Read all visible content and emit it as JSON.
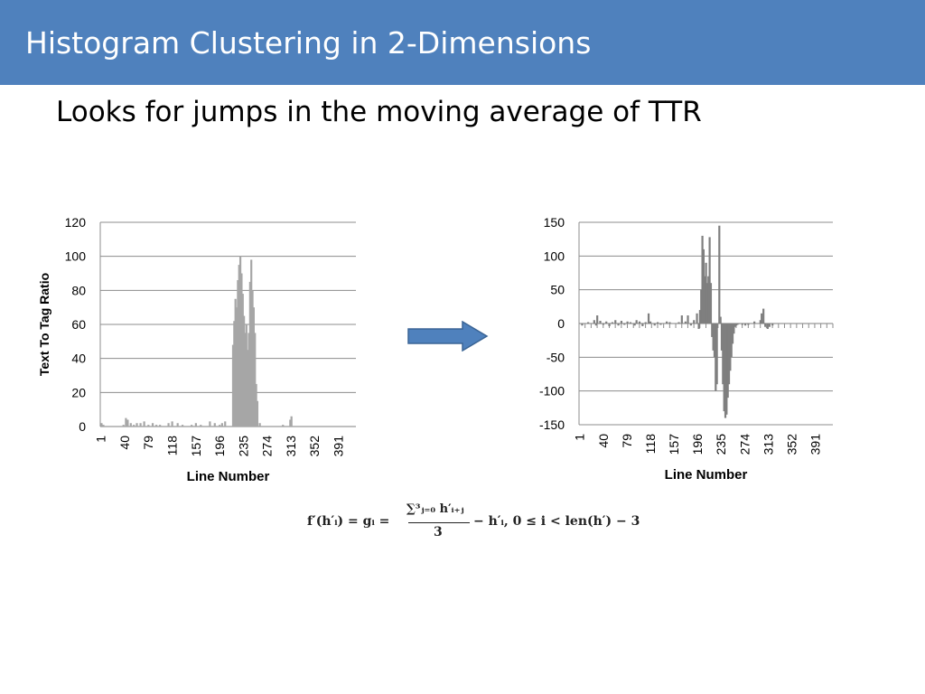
{
  "slide": {
    "title": "Histogram Clustering in 2-Dimensions",
    "subtitle": "Looks for jumps in the moving average of TTR"
  },
  "colors": {
    "title_bar": "#4f81bd",
    "arrow": "#4f81bd",
    "bars": "#a6a6a6",
    "bars_dark": "#7f7f7f",
    "gridline": "#8c8c8c"
  },
  "formula": {
    "lhs": "f′(h′ᵢ) = gᵢ =",
    "numerator": "∑³ⱼ₌₀ h′ᵢ₊ⱼ",
    "denominator": "3",
    "rhs": "− h′ᵢ, 0 ≤ i < len(h′) − 3"
  },
  "chart_data": [
    {
      "type": "bar",
      "ylabel": "Text To Tag Ratio",
      "xlabel": "Line Number",
      "ylim": [
        0,
        120
      ],
      "yticks": [
        "120",
        "100",
        "80",
        "60",
        "40",
        "20",
        "0"
      ],
      "xticks": [
        "1",
        "40",
        "79",
        "118",
        "157",
        "196",
        "235",
        "274",
        "313",
        "352",
        "391"
      ],
      "grid": true,
      "x": [
        2,
        5,
        38,
        42,
        45,
        50,
        55,
        60,
        66,
        72,
        79,
        86,
        92,
        98,
        112,
        118,
        127,
        135,
        150,
        157,
        165,
        180,
        188,
        196,
        200,
        205,
        218,
        220,
        222,
        224,
        226,
        228,
        230,
        232,
        234,
        236,
        238,
        240,
        242,
        244,
        246,
        248,
        250,
        252,
        254,
        256,
        258,
        262,
        300,
        312,
        314
      ],
      "values": [
        2,
        1,
        1,
        5,
        4,
        2,
        1,
        2,
        2,
        3,
        1,
        2,
        1,
        1,
        2,
        3,
        2,
        1,
        1,
        2,
        1,
        3,
        2,
        1,
        2,
        3,
        48,
        62,
        75,
        70,
        86,
        95,
        100,
        90,
        78,
        65,
        55,
        60,
        45,
        55,
        85,
        98,
        80,
        70,
        55,
        25,
        15,
        2,
        1,
        4,
        6
      ]
    },
    {
      "type": "bar",
      "xlabel": "Line Number",
      "ylim": [
        -150,
        150
      ],
      "yticks": [
        "150",
        "100",
        "50",
        "0",
        "-50",
        "-100",
        "-150"
      ],
      "xticks": [
        "1",
        "40",
        "79",
        "118",
        "157",
        "196",
        "235",
        "274",
        "313",
        "352",
        "391"
      ],
      "grid": true,
      "x": [
        5,
        15,
        25,
        28,
        30,
        35,
        40,
        45,
        50,
        55,
        60,
        65,
        70,
        75,
        80,
        85,
        92,
        95,
        100,
        105,
        110,
        115,
        118,
        125,
        130,
        135,
        145,
        150,
        165,
        170,
        176,
        180,
        185,
        190,
        195,
        198,
        200,
        202,
        204,
        206,
        208,
        210,
        212,
        214,
        216,
        218,
        220,
        222,
        224,
        226,
        228,
        232,
        234,
        236,
        238,
        240,
        242,
        244,
        246,
        248,
        250,
        252,
        254,
        256,
        258,
        260,
        262,
        264,
        270,
        275,
        280,
        290,
        300,
        302,
        305,
        308,
        312,
        315,
        320
      ],
      "values": [
        -3,
        2,
        5,
        -3,
        12,
        4,
        -2,
        3,
        -4,
        2,
        5,
        -3,
        4,
        -2,
        3,
        2,
        -3,
        5,
        3,
        -4,
        2,
        15,
        3,
        -3,
        2,
        -2,
        3,
        2,
        2,
        12,
        3,
        12,
        -3,
        5,
        15,
        -8,
        20,
        50,
        130,
        110,
        70,
        90,
        60,
        70,
        128,
        60,
        -20,
        -40,
        -50,
        -100,
        -90,
        145,
        10,
        -40,
        -90,
        -130,
        -140,
        -135,
        -110,
        -90,
        -70,
        -50,
        -30,
        -15,
        -5,
        -3,
        -2,
        -1,
        -2,
        -3,
        -2,
        3,
        5,
        15,
        22,
        -5,
        -8,
        -5,
        -3
      ]
    }
  ]
}
